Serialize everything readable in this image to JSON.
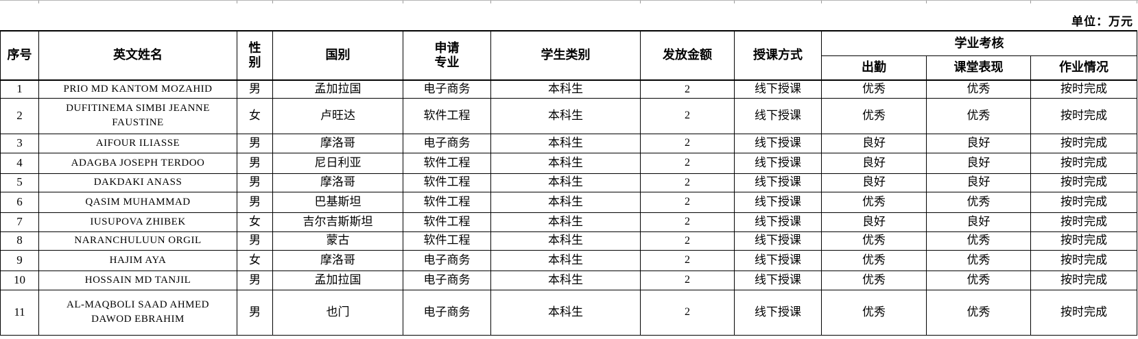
{
  "unit_label": "单位：万元",
  "table": {
    "headers": {
      "no": "序号",
      "name": "英文姓名",
      "gender": "性\n别",
      "country": "国别",
      "major": "申请\n专业",
      "category": "学生类别",
      "amount": "发放金额",
      "mode": "授课方式",
      "assessment_group": "学业考核",
      "attendance": "出勤",
      "performance": "课堂表现",
      "homework": "作业情况"
    },
    "rows": [
      {
        "no": "1",
        "name": "PRIO MD KANTOM MOZAHID",
        "gender": "男",
        "country": "孟加拉国",
        "major": "电子商务",
        "category": "本科生",
        "amount": "2",
        "mode": "线下授课",
        "attendance": "优秀",
        "performance": "优秀",
        "homework": "按时完成"
      },
      {
        "no": "2",
        "name": "DUFITINEMA SIMBI JEANNE FAUSTINE",
        "gender": "女",
        "country": "卢旺达",
        "major": "软件工程",
        "category": "本科生",
        "amount": "2",
        "mode": "线下授课",
        "attendance": "优秀",
        "performance": "优秀",
        "homework": "按时完成"
      },
      {
        "no": "3",
        "name": "AIFOUR ILIASSE",
        "gender": "男",
        "country": "摩洛哥",
        "major": "电子商务",
        "category": "本科生",
        "amount": "2",
        "mode": "线下授课",
        "attendance": "良好",
        "performance": "良好",
        "homework": "按时完成"
      },
      {
        "no": "4",
        "name": "ADAGBA JOSEPH TERDOO",
        "gender": "男",
        "country": "尼日利亚",
        "major": "软件工程",
        "category": "本科生",
        "amount": "2",
        "mode": "线下授课",
        "attendance": "良好",
        "performance": "良好",
        "homework": "按时完成"
      },
      {
        "no": "5",
        "name": "DAKDAKI ANASS",
        "gender": "男",
        "country": "摩洛哥",
        "major": "软件工程",
        "category": "本科生",
        "amount": "2",
        "mode": "线下授课",
        "attendance": "良好",
        "performance": "良好",
        "homework": "按时完成"
      },
      {
        "no": "6",
        "name": "QASIM MUHAMMAD",
        "gender": "男",
        "country": "巴基斯坦",
        "major": "软件工程",
        "category": "本科生",
        "amount": "2",
        "mode": "线下授课",
        "attendance": "优秀",
        "performance": "优秀",
        "homework": "按时完成"
      },
      {
        "no": "7",
        "name": "IUSUPOVA ZHIBEK",
        "gender": "女",
        "country": "吉尔吉斯斯坦",
        "major": "软件工程",
        "category": "本科生",
        "amount": "2",
        "mode": "线下授课",
        "attendance": "良好",
        "performance": "良好",
        "homework": "按时完成"
      },
      {
        "no": "8",
        "name": "NARANCHULUUN ORGIL",
        "gender": "男",
        "country": "蒙古",
        "major": "软件工程",
        "category": "本科生",
        "amount": "2",
        "mode": "线下授课",
        "attendance": "优秀",
        "performance": "优秀",
        "homework": "按时完成"
      },
      {
        "no": "9",
        "name": "HAJIM AYA",
        "gender": "女",
        "country": "摩洛哥",
        "major": "电子商务",
        "category": "本科生",
        "amount": "2",
        "mode": "线下授课",
        "attendance": "优秀",
        "performance": "优秀",
        "homework": "按时完成"
      },
      {
        "no": "10",
        "name": "HOSSAIN MD TANJIL",
        "gender": "男",
        "country": "孟加拉国",
        "major": "电子商务",
        "category": "本科生",
        "amount": "2",
        "mode": "线下授课",
        "attendance": "优秀",
        "performance": "优秀",
        "homework": "按时完成"
      },
      {
        "no": "11",
        "name": "AL-MAQBOLI SAAD AHMED DAWOD EBRAHIM",
        "gender": "男",
        "country": "也门",
        "major": "电子商务",
        "category": "本科生",
        "amount": "2",
        "mode": "线下授课",
        "attendance": "优秀",
        "performance": "优秀",
        "homework": "按时完成"
      }
    ]
  }
}
